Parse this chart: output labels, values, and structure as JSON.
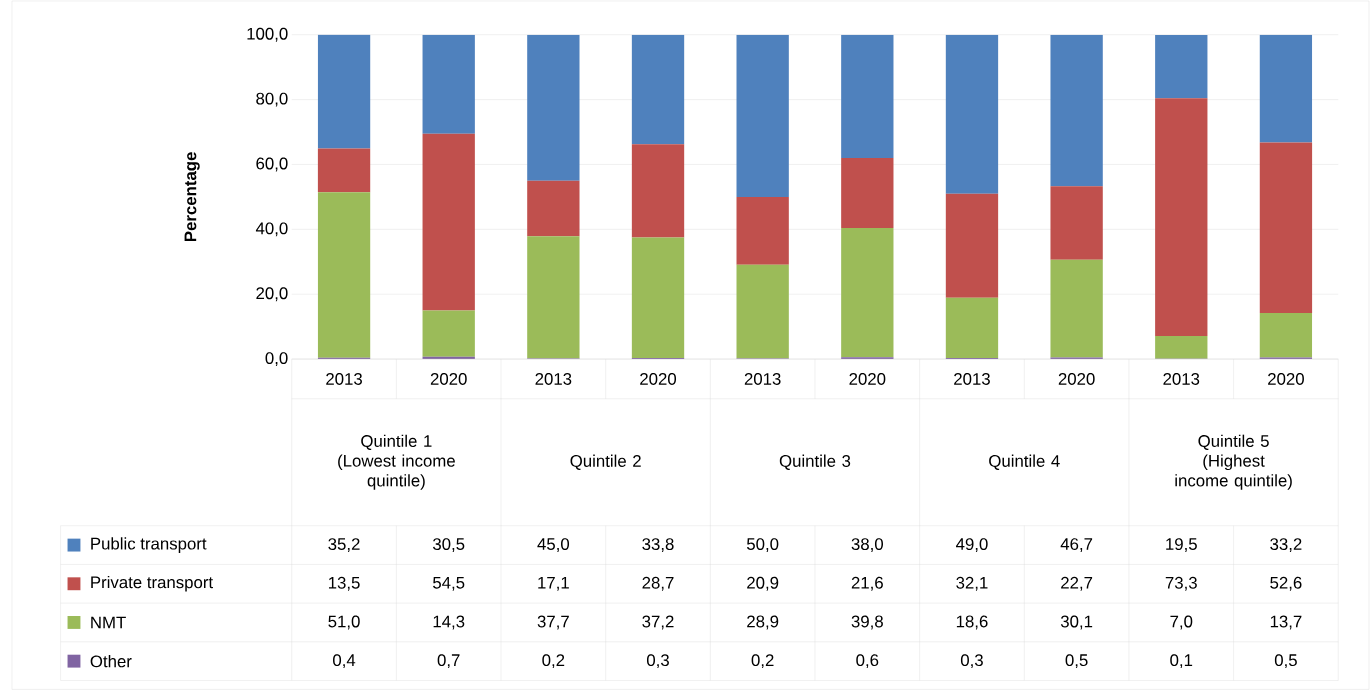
{
  "chart_data": {
    "type": "bar",
    "stacked": true,
    "ylabel": "Percentage",
    "grid": "y",
    "legend": "bottom left",
    "data_labels": true,
    "categories": [
      "2013",
      "2020",
      "2013",
      "2020",
      "2013",
      "2020",
      "2013",
      "2020",
      "2013",
      "2020"
    ],
    "annotations": [
      "Quintile 1 (Lowest income quintile)",
      "Quintile 2",
      "Quintile 3",
      "Quintile 4",
      "Quintile 5 (Highest income quintile)"
    ],
    "ylim": [
      0,
      100
    ],
    "yticks": [
      {
        "value": 0,
        "label": "0,0"
      },
      {
        "value": 20,
        "label": "20,0"
      },
      {
        "value": 40,
        "label": "40,0"
      },
      {
        "value": 60,
        "label": "60,0"
      },
      {
        "value": 80,
        "label": "80,0"
      },
      {
        "value": 100,
        "label": "100,0"
      }
    ],
    "series": [
      {
        "name": "Other",
        "color": "#8064a2",
        "values": [
          0.4,
          0.7,
          0.2,
          0.3,
          0.2,
          0.6,
          0.3,
          0.5,
          0.1,
          0.5
        ],
        "value_labels": [
          "0,4",
          "0,7",
          "0,2",
          "0,3",
          "0,2",
          "0,6",
          "0,3",
          "0,5",
          "0,1",
          "0,5"
        ]
      },
      {
        "name": "NMT",
        "color": "#9bbb59",
        "values": [
          51.0,
          14.3,
          37.7,
          37.2,
          28.9,
          39.8,
          18.6,
          30.1,
          7.0,
          13.7
        ],
        "value_labels": [
          "51,0",
          "14,3",
          "37,7",
          "37,2",
          "28,9",
          "39,8",
          "18,6",
          "30,1",
          "7,0",
          "13,7"
        ]
      },
      {
        "name": "Private transport",
        "color": "#c0504d",
        "values": [
          13.5,
          54.5,
          17.1,
          28.7,
          20.9,
          21.6,
          32.1,
          22.7,
          73.3,
          52.6
        ],
        "value_labels": [
          "13,5",
          "54,5",
          "17,1",
          "28,7",
          "20,9",
          "21,6",
          "32,1",
          "22,7",
          "73,3",
          "52,6"
        ]
      },
      {
        "name": "Public transport",
        "color": "#4f81bd",
        "values": [
          35.2,
          30.5,
          45.0,
          33.8,
          50.0,
          38.0,
          49.0,
          46.7,
          19.5,
          33.2
        ],
        "value_labels": [
          "35,2",
          "30,5",
          "45,0",
          "33,8",
          "50,0",
          "38,0",
          "49,0",
          "46,7",
          "19,5",
          "33,2"
        ]
      }
    ]
  }
}
